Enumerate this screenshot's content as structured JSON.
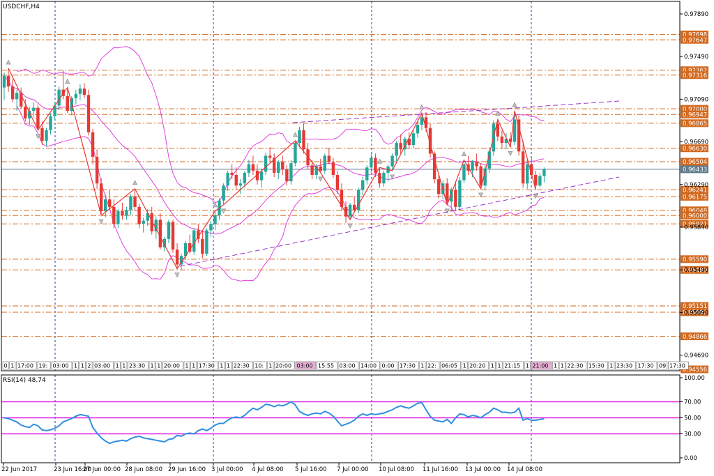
{
  "window": {
    "title": "USDCHF,H4",
    "indicator_label": "RSI(14) 48.74"
  },
  "colors": {
    "bull": "#26a69a",
    "bear": "#e53935",
    "bollinger": "#e040e0",
    "zigzag": "#e53935",
    "level_line": "#d2691e",
    "price_label_bg": "#d2691e",
    "current_label_bg": "#5f7a8c",
    "trend_line": "#9932cc",
    "separator": "#1c39bb",
    "rsi_line": "#2e8fe0",
    "rsi_level": "#e020e0"
  },
  "chart_data": [
    {
      "type": "candlestick",
      "title": "USDCHF,H4",
      "ylim": [
        0.94556,
        0.9789
      ],
      "yticks": [
        "0.97890",
        "0.97490",
        "0.97090",
        "0.96690",
        "0.96290",
        "0.95890",
        "0.95490",
        "0.95090",
        "0.94690"
      ],
      "xticks": [
        "22 Jun 2017",
        "23 Jun 16:00",
        "27 Jun 00:00",
        "28 Jun 08:00",
        "29 Jun 16:00",
        "3 Jul 00:00",
        "4 Jul 08:00",
        "5 Jul 16:00",
        "7 Jul 00:00",
        "10 Jul 08:00",
        "11 Jul 16:00",
        "13 Jul 00:00",
        "14 Jul 08:00"
      ],
      "current_price": "0.96433",
      "price_levels": [
        "0.97698",
        "0.97647",
        "0.97362",
        "0.97316",
        "0.97000",
        "0.96947",
        "0.96865",
        "0.96630",
        "0.96504",
        "0.96241",
        "0.96175",
        "0.96048",
        "0.96000",
        "0.95921",
        "0.95590",
        "0.95489",
        "0.95151",
        "0.95092",
        "0.94866",
        "0.94556"
      ],
      "time_labels": [
        "0",
        "1",
        "17:00",
        "19:",
        "03:00",
        "1",
        "1",
        "2",
        "03:00",
        "1",
        "1",
        "23:30",
        "1",
        "1",
        "20:00",
        "1",
        "1",
        "17:30",
        "1",
        "1",
        "22:30",
        "10:",
        "1",
        "20:00",
        "03:00",
        "15:55",
        "03:00",
        "14:00",
        "0:00",
        "17:30",
        "1",
        "22:",
        "06:05",
        "1",
        "20:20",
        "1",
        "1",
        "21:15",
        "1",
        "21:00",
        "1",
        "1",
        "22:30",
        "15:30",
        "1",
        "23:30",
        "17:30",
        "09",
        "17:30"
      ],
      "candles": [
        [
          0.972,
          0.9734,
          0.9708,
          0.9731
        ],
        [
          0.9731,
          0.9738,
          0.9716,
          0.9721
        ],
        [
          0.9721,
          0.9728,
          0.9706,
          0.9709
        ],
        [
          0.9709,
          0.9718,
          0.9698,
          0.9715
        ],
        [
          0.9715,
          0.972,
          0.97,
          0.9702
        ],
        [
          0.9702,
          0.9709,
          0.9688,
          0.9691
        ],
        [
          0.9691,
          0.9702,
          0.9685,
          0.9698
        ],
        [
          0.9698,
          0.9706,
          0.9692,
          0.9701
        ],
        [
          0.9701,
          0.9704,
          0.968,
          0.9682
        ],
        [
          0.9682,
          0.9688,
          0.9666,
          0.967
        ],
        [
          0.967,
          0.9682,
          0.9665,
          0.968
        ],
        [
          0.968,
          0.9696,
          0.9676,
          0.9693
        ],
        [
          0.9693,
          0.9706,
          0.9689,
          0.9703
        ],
        [
          0.9703,
          0.9721,
          0.9699,
          0.9718
        ],
        [
          0.9718,
          0.9736,
          0.9709,
          0.9712
        ],
        [
          0.9712,
          0.972,
          0.9696,
          0.9698
        ],
        [
          0.9698,
          0.9712,
          0.9694,
          0.971
        ],
        [
          0.971,
          0.9718,
          0.9704,
          0.9714
        ],
        [
          0.9714,
          0.9723,
          0.9708,
          0.9719
        ],
        [
          0.9719,
          0.9724,
          0.971,
          0.9713
        ],
        [
          0.9713,
          0.9718,
          0.9675,
          0.9678
        ],
        [
          0.9678,
          0.9681,
          0.9648,
          0.9655
        ],
        [
          0.9655,
          0.9662,
          0.9625,
          0.963
        ],
        [
          0.963,
          0.9635,
          0.96,
          0.9604
        ],
        [
          0.9604,
          0.962,
          0.9598,
          0.9615
        ],
        [
          0.9615,
          0.9624,
          0.9605,
          0.9608
        ],
        [
          0.9608,
          0.9615,
          0.9588,
          0.9592
        ],
        [
          0.9592,
          0.9606,
          0.9588,
          0.9604
        ],
        [
          0.9604,
          0.9612,
          0.9596,
          0.96
        ],
        [
          0.96,
          0.9608,
          0.9596,
          0.9605
        ],
        [
          0.9605,
          0.962,
          0.96,
          0.9618
        ],
        [
          0.9618,
          0.9625,
          0.9604,
          0.9608
        ],
        [
          0.9608,
          0.9611,
          0.9588,
          0.9592
        ],
        [
          0.9592,
          0.9598,
          0.9584,
          0.9595
        ],
        [
          0.9595,
          0.9606,
          0.959,
          0.9602
        ],
        [
          0.9602,
          0.9608,
          0.9582,
          0.9585
        ],
        [
          0.9585,
          0.9599,
          0.9578,
          0.9596
        ],
        [
          0.9596,
          0.9602,
          0.9568,
          0.957
        ],
        [
          0.957,
          0.958,
          0.9566,
          0.9578
        ],
        [
          0.9578,
          0.9596,
          0.9574,
          0.9594
        ],
        [
          0.9594,
          0.9596,
          0.9565,
          0.9568
        ],
        [
          0.9568,
          0.9574,
          0.955,
          0.9554
        ],
        [
          0.9554,
          0.9564,
          0.9549,
          0.9562
        ],
        [
          0.9562,
          0.9576,
          0.9558,
          0.9574
        ],
        [
          0.9574,
          0.9582,
          0.9564,
          0.9566
        ],
        [
          0.9566,
          0.9588,
          0.9563,
          0.9586
        ],
        [
          0.9586,
          0.9592,
          0.9574,
          0.9578
        ],
        [
          0.9578,
          0.9586,
          0.956,
          0.9564
        ],
        [
          0.9564,
          0.9588,
          0.9562,
          0.9586
        ],
        [
          0.9586,
          0.9595,
          0.958,
          0.9592
        ],
        [
          0.9592,
          0.9604,
          0.9586,
          0.96
        ],
        [
          0.96,
          0.9616,
          0.9596,
          0.9614
        ],
        [
          0.9614,
          0.963,
          0.961,
          0.9628
        ],
        [
          0.9628,
          0.9642,
          0.9623,
          0.964
        ],
        [
          0.964,
          0.9648,
          0.9634,
          0.9638
        ],
        [
          0.9638,
          0.9645,
          0.9624,
          0.9628
        ],
        [
          0.9628,
          0.9634,
          0.962,
          0.963
        ],
        [
          0.963,
          0.9642,
          0.9626,
          0.964
        ],
        [
          0.964,
          0.9652,
          0.9636,
          0.9648
        ],
        [
          0.9648,
          0.9656,
          0.9638,
          0.9642
        ],
        [
          0.9642,
          0.9648,
          0.9629,
          0.9633
        ],
        [
          0.9633,
          0.9644,
          0.9626,
          0.9641
        ],
        [
          0.9641,
          0.9659,
          0.9638,
          0.9656
        ],
        [
          0.9656,
          0.9664,
          0.965,
          0.9654
        ],
        [
          0.9654,
          0.9658,
          0.9636,
          0.964
        ],
        [
          0.964,
          0.9652,
          0.9634,
          0.965
        ],
        [
          0.965,
          0.9656,
          0.9638,
          0.9643
        ],
        [
          0.9643,
          0.9647,
          0.9628,
          0.9632
        ],
        [
          0.9632,
          0.9652,
          0.9629,
          0.9649
        ],
        [
          0.9649,
          0.967,
          0.9646,
          0.9668
        ],
        [
          0.9668,
          0.9683,
          0.9664,
          0.968
        ],
        [
          0.968,
          0.9686,
          0.9658,
          0.9662
        ],
        [
          0.9662,
          0.9668,
          0.9643,
          0.9647
        ],
        [
          0.9647,
          0.9652,
          0.9634,
          0.9638
        ],
        [
          0.9638,
          0.9648,
          0.9634,
          0.9646
        ],
        [
          0.9646,
          0.9653,
          0.964,
          0.9642
        ],
        [
          0.9642,
          0.9658,
          0.9639,
          0.9656
        ],
        [
          0.9656,
          0.9663,
          0.9648,
          0.965
        ],
        [
          0.965,
          0.9654,
          0.9635,
          0.9638
        ],
        [
          0.9638,
          0.9642,
          0.962,
          0.9624
        ],
        [
          0.9624,
          0.963,
          0.9604,
          0.9608
        ],
        [
          0.9608,
          0.9613,
          0.9593,
          0.9599
        ],
        [
          0.9599,
          0.9612,
          0.9596,
          0.961
        ],
        [
          0.961,
          0.9618,
          0.9603,
          0.9605
        ],
        [
          0.9605,
          0.9626,
          0.9602,
          0.9624
        ],
        [
          0.9624,
          0.9636,
          0.9619,
          0.9633
        ],
        [
          0.9633,
          0.9647,
          0.9629,
          0.9645
        ],
        [
          0.9645,
          0.9658,
          0.964,
          0.9654
        ],
        [
          0.9654,
          0.9658,
          0.9636,
          0.964
        ],
        [
          0.964,
          0.9645,
          0.9626,
          0.963
        ],
        [
          0.963,
          0.9642,
          0.9627,
          0.964
        ],
        [
          0.964,
          0.9648,
          0.9632,
          0.9646
        ],
        [
          0.9646,
          0.9658,
          0.9642,
          0.9656
        ],
        [
          0.9656,
          0.967,
          0.9651,
          0.9668
        ],
        [
          0.9668,
          0.9676,
          0.9658,
          0.9662
        ],
        [
          0.9662,
          0.9674,
          0.9656,
          0.9672
        ],
        [
          0.9672,
          0.9678,
          0.9662,
          0.9666
        ],
        [
          0.9666,
          0.968,
          0.9663,
          0.9677
        ],
        [
          0.9677,
          0.9688,
          0.9673,
          0.9685
        ],
        [
          0.9685,
          0.9696,
          0.968,
          0.9692
        ],
        [
          0.9692,
          0.9697,
          0.9678,
          0.9682
        ],
        [
          0.9682,
          0.9686,
          0.9654,
          0.9658
        ],
        [
          0.9658,
          0.966,
          0.963,
          0.9634
        ],
        [
          0.9634,
          0.9639,
          0.9616,
          0.962
        ],
        [
          0.962,
          0.9633,
          0.9615,
          0.963
        ],
        [
          0.963,
          0.9635,
          0.961,
          0.9613
        ],
        [
          0.9613,
          0.9626,
          0.9605,
          0.9624
        ],
        [
          0.9624,
          0.9632,
          0.9604,
          0.9608
        ],
        [
          0.9608,
          0.9636,
          0.9606,
          0.9633
        ],
        [
          0.9633,
          0.9652,
          0.963,
          0.9648
        ],
        [
          0.9648,
          0.9656,
          0.9638,
          0.9642
        ],
        [
          0.9642,
          0.9652,
          0.9636,
          0.965
        ],
        [
          0.965,
          0.9658,
          0.9642,
          0.9646
        ],
        [
          0.9646,
          0.9649,
          0.9625,
          0.9628
        ],
        [
          0.9628,
          0.9647,
          0.9624,
          0.9644
        ],
        [
          0.9644,
          0.9664,
          0.964,
          0.966
        ],
        [
          0.966,
          0.9689,
          0.9656,
          0.9686
        ],
        [
          0.9686,
          0.969,
          0.967,
          0.9674
        ],
        [
          0.9674,
          0.968,
          0.9662,
          0.9668
        ],
        [
          0.9668,
          0.9677,
          0.9663,
          0.9672
        ],
        [
          0.9672,
          0.9678,
          0.9664,
          0.9669
        ],
        [
          0.9669,
          0.9698,
          0.9666,
          0.969
        ],
        [
          0.969,
          0.9694,
          0.9656,
          0.966
        ],
        [
          0.966,
          0.967,
          0.9626,
          0.963
        ],
        [
          0.963,
          0.9652,
          0.9625,
          0.9648
        ],
        [
          0.9648,
          0.9654,
          0.9635,
          0.9638
        ],
        [
          0.9638,
          0.9642,
          0.9624,
          0.9628
        ],
        [
          0.9628,
          0.964,
          0.9626,
          0.9637
        ],
        [
          0.9637,
          0.9645,
          0.9631,
          0.96433
        ]
      ]
    },
    {
      "type": "line",
      "title": "RSI(14) 48.74",
      "ylim": [
        0,
        100
      ],
      "yticks": [
        "100.00",
        "70.00",
        "50.00",
        "30.00",
        "0.00"
      ],
      "levels": [
        70,
        50,
        30
      ],
      "values": [
        50,
        49,
        47,
        45,
        41,
        39,
        38,
        42,
        40,
        35,
        34,
        35,
        37,
        40,
        45,
        47,
        49,
        52,
        54,
        53,
        52,
        38,
        31,
        25,
        21,
        18,
        20,
        21,
        22,
        21,
        24,
        26,
        27,
        25,
        24,
        23,
        22,
        21,
        20,
        23,
        24,
        28,
        27,
        30,
        31,
        30,
        34,
        36,
        34,
        37,
        41,
        43,
        43,
        47,
        50,
        51,
        50,
        53,
        58,
        62,
        60,
        63,
        67,
        66,
        64,
        66,
        65,
        67,
        70,
        66,
        58,
        55,
        53,
        55,
        56,
        55,
        58,
        56,
        52,
        46,
        40,
        42,
        44,
        47,
        52,
        55,
        53,
        55,
        54,
        55,
        56,
        58,
        60,
        63,
        65,
        63,
        62,
        65,
        68,
        69,
        60,
        52,
        47,
        46,
        45,
        48,
        43,
        50,
        55,
        54,
        51,
        53,
        52,
        50,
        54,
        57,
        62,
        60,
        57,
        57,
        56,
        57,
        62,
        47,
        49,
        47,
        47,
        48,
        48.74
      ]
    }
  ]
}
